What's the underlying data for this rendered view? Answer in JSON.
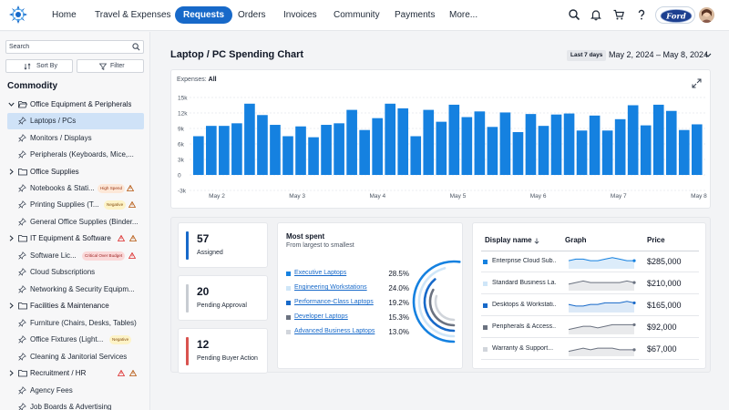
{
  "nav": {
    "items": [
      "Home",
      "Travel & Expenses",
      "Requests",
      "Orders",
      "Invoices",
      "Community",
      "Payments",
      "More..."
    ],
    "active_index": 2,
    "brand_badge": "Ford"
  },
  "colors": {
    "accent": "#1769c9",
    "bar": "#1581e0",
    "selected_row": "#cfe2f7",
    "kpi_assigned": "#1769c9",
    "kpi_pending": "#c8ccd2",
    "kpi_buyer": "#d9534f"
  },
  "sidebar": {
    "search_placeholder": "Search",
    "sort_label": "Sort By",
    "filter_label": "Filter",
    "section_title": "Commodity",
    "items": [
      {
        "label": "Office Equipment & Peripherals",
        "type": "category",
        "expanded": true
      },
      {
        "label": "Laptops / PCs",
        "type": "item",
        "selected": true
      },
      {
        "label": "Monitors / Displays",
        "type": "item"
      },
      {
        "label": "Peripherals (Keyboards, Mice,...",
        "type": "item"
      },
      {
        "label": "Office Supplies",
        "type": "category",
        "expanded": false
      },
      {
        "label": "Notebooks & Stati...",
        "type": "item",
        "badge": "High Spend",
        "badge_kind": "high",
        "warn": true
      },
      {
        "label": "Printing Supplies (T...",
        "type": "item",
        "badge": "Negative",
        "badge_kind": "neg",
        "warn": true
      },
      {
        "label": "General Office Supplies (Binder...",
        "type": "item"
      },
      {
        "label": "IT Equipment & Software",
        "type": "category",
        "expanded": false,
        "warns": 2
      },
      {
        "label": "Software Lic...",
        "type": "item",
        "badge": "Critical Over Budget",
        "badge_kind": "crit",
        "warn": true
      },
      {
        "label": "Cloud Subscriptions",
        "type": "item"
      },
      {
        "label": "Networking & Security Equipm...",
        "type": "item"
      },
      {
        "label": "Facilities & Maintenance",
        "type": "category",
        "expanded": false
      },
      {
        "label": "Furniture (Chairs, Desks, Tables)",
        "type": "item"
      },
      {
        "label": "Office Fixtures (Light...",
        "type": "item",
        "badge": "Negative",
        "badge_kind": "neg"
      },
      {
        "label": "Cleaning & Janitorial Services",
        "type": "item"
      },
      {
        "label": "Recruitment / HR",
        "type": "category",
        "expanded": false,
        "warns": 2
      },
      {
        "label": "Agency Fees",
        "type": "item"
      },
      {
        "label": "Job Boards & Advertising",
        "type": "item"
      }
    ]
  },
  "header": {
    "title": "Laptop / PC Spending Chart",
    "range_badge": "Last 7 days",
    "date_range": "May 2, 2024  –  May 8, 2024"
  },
  "chart_filter": {
    "label": "Expenses:",
    "value": "All"
  },
  "chart_data": {
    "type": "bar",
    "x_tick_labels": [
      "May 2",
      "May 3",
      "May 4",
      "May 5",
      "May 6",
      "May 7",
      "May 8"
    ],
    "y_tick_labels": [
      "15k",
      "12k",
      "9k",
      "6k",
      "3k",
      "0",
      "-3k"
    ],
    "ylim": [
      -3000,
      15000
    ],
    "values": [
      7500,
      9500,
      9500,
      10000,
      13800,
      11600,
      9700,
      7500,
      9400,
      7300,
      9700,
      10000,
      12600,
      8700,
      11000,
      13800,
      12900,
      7500,
      12600,
      10300,
      13600,
      11200,
      12300,
      9300,
      12100,
      8300,
      11800,
      9500,
      11700,
      11900,
      8600,
      11500,
      8600,
      10800,
      13500,
      9600,
      13600,
      12400,
      8700,
      9800
    ]
  },
  "kpis": [
    {
      "value": "57",
      "label": "Assigned",
      "color": "#1769c9"
    },
    {
      "value": "20",
      "label": "Pending Approval",
      "color": "#c8ccd2"
    },
    {
      "value": "12",
      "label": "Pending Buyer Action",
      "color": "#d9534f"
    }
  ],
  "most_spent": {
    "title": "Most spent",
    "subtitle": "From largest to smallest",
    "items": [
      {
        "label": "Executive Laptops",
        "pct": "28.5%",
        "share": 28.5,
        "color": "#1581e0"
      },
      {
        "label": "Engineering Workstations",
        "pct": "24.0%",
        "share": 24.0,
        "color": "#cfe6f8"
      },
      {
        "label": "Performance-Class Laptops",
        "pct": "19.2%",
        "share": 19.2,
        "color": "#1769c9"
      },
      {
        "label": "Developer Laptops",
        "pct": "15.3%",
        "share": 15.3,
        "color": "#6b7280"
      },
      {
        "label": "Advanced Business Laptops",
        "pct": "13.0%",
        "share": 13.0,
        "color": "#d1d5db"
      }
    ]
  },
  "table": {
    "headers": [
      "Display name",
      "Graph",
      "Price"
    ],
    "rows": [
      {
        "name": "Enterprise Cloud Sub...",
        "price": "$285,000",
        "color": "#1581e0",
        "spark": [
          4,
          5,
          5,
          4,
          4,
          5,
          6,
          5,
          4,
          4
        ]
      },
      {
        "name": "Standard Business La...",
        "price": "$210,000",
        "color": "#cfe6f8",
        "spark": [
          3,
          4,
          5,
          4,
          4,
          4,
          4,
          4,
          5,
          4
        ]
      },
      {
        "name": "Desktops & Workstati...",
        "price": "$165,000",
        "color": "#1769c9",
        "spark": [
          4,
          3,
          3,
          4,
          4,
          5,
          5,
          5,
          6,
          5
        ]
      },
      {
        "name": "Peripherals & Access...",
        "price": "$92,000",
        "color": "#6b7280",
        "spark": [
          2,
          3,
          4,
          4,
          3,
          4,
          5,
          5,
          5,
          5
        ]
      },
      {
        "name": "Warranty & Support...",
        "price": "$67,000",
        "color": "#d1d5db",
        "spark": [
          2,
          3,
          4,
          3,
          4,
          4,
          4,
          3,
          3,
          3
        ]
      }
    ]
  }
}
